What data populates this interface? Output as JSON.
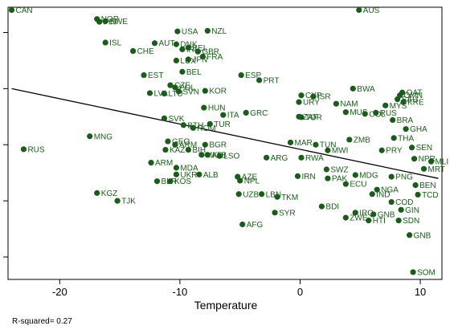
{
  "chart_data": {
    "type": "scatter",
    "title": "",
    "xlabel": "Temperature",
    "ylabel": "",
    "xlim": [
      -24.3,
      11.8
    ],
    "ylim": [
      -2.4,
      2.45
    ],
    "xticks": [
      -20,
      -10,
      0,
      10
    ],
    "xtick_labels": [
      "-20",
      "-10",
      "0",
      "10"
    ],
    "yticks": [
      -2,
      -1,
      0,
      1,
      2
    ],
    "grid": false,
    "legend": "none",
    "marker_color": "#1a5c1a",
    "note": "R-squared= 0.27",
    "fit_line": {
      "x": [
        -24,
        11.5
      ],
      "y": [
        1.0,
        -0.6
      ]
    },
    "points": [
      {
        "label": "CAN",
        "x": -24.0,
        "y": 2.4
      },
      {
        "label": "NOR",
        "x": -16.9,
        "y": 2.24
      },
      {
        "label": "FIN",
        "x": -16.7,
        "y": 2.19
      },
      {
        "label": "SWE",
        "x": -16.2,
        "y": 2.2
      },
      {
        "label": "AUS",
        "x": 4.9,
        "y": 2.4
      },
      {
        "label": "ISL",
        "x": -16.2,
        "y": 1.82
      },
      {
        "label": "USA",
        "x": -10.2,
        "y": 2.02
      },
      {
        "label": "NZL",
        "x": -7.7,
        "y": 2.03
      },
      {
        "label": "AUT",
        "x": -12.1,
        "y": 1.81
      },
      {
        "label": "DNK",
        "x": -10.3,
        "y": 1.79
      },
      {
        "label": "CHE",
        "x": -13.9,
        "y": 1.67
      },
      {
        "label": "BEL_u",
        "x": -9.3,
        "y": 1.73
      },
      {
        "label": "IRL",
        "x": -9.8,
        "y": 1.7
      },
      {
        "label": "GBR",
        "x": -8.5,
        "y": 1.66
      },
      {
        "label": "FRA",
        "x": -8.1,
        "y": 1.57
      },
      {
        "label": "LUX",
        "x": -10.3,
        "y": 1.5
      },
      {
        "label": "JPN",
        "x": -9.3,
        "y": 1.52
      },
      {
        "label": "BEL",
        "x": -9.8,
        "y": 1.3
      },
      {
        "label": "EST",
        "x": -13.0,
        "y": 1.24
      },
      {
        "label": "ESP",
        "x": -4.9,
        "y": 1.24
      },
      {
        "label": "PRT",
        "x": -3.4,
        "y": 1.15
      },
      {
        "label": "CZE",
        "x": -10.8,
        "y": 1.06
      },
      {
        "label": "POL",
        "x": -10.4,
        "y": 1.02
      },
      {
        "label": "LVA",
        "x": -12.5,
        "y": 0.92
      },
      {
        "label": "LTU",
        "x": -11.3,
        "y": 0.91
      },
      {
        "label": "SVN",
        "x": -10.1,
        "y": 0.95
      },
      {
        "label": "KOR",
        "x": -7.9,
        "y": 0.96
      },
      {
        "label": "BWA",
        "x": 4.4,
        "y": 1.0
      },
      {
        "label": "QAT",
        "x": 8.5,
        "y": 0.93
      },
      {
        "label": "OMN",
        "x": 8.3,
        "y": 0.88
      },
      {
        "label": "CYP",
        "x": 0.1,
        "y": 0.88
      },
      {
        "label": "ISR",
        "x": 1.1,
        "y": 0.86
      },
      {
        "label": "URY",
        "x": -0.1,
        "y": 0.76
      },
      {
        "label": "NAM",
        "x": 3.0,
        "y": 0.73
      },
      {
        "label": "SAU",
        "x": 8.1,
        "y": 0.81
      },
      {
        "label": "KRE",
        "x": 8.6,
        "y": 0.76
      },
      {
        "label": "MYS",
        "x": 7.1,
        "y": 0.7
      },
      {
        "label": "HUN",
        "x": -8.0,
        "y": 0.66
      },
      {
        "label": "ITA",
        "x": -6.4,
        "y": 0.53
      },
      {
        "label": "GRC",
        "x": -4.5,
        "y": 0.57
      },
      {
        "label": "SVK",
        "x": -11.3,
        "y": 0.47
      },
      {
        "label": "ZAF",
        "x": -0.1,
        "y": 0.5
      },
      {
        "label": "TOR",
        "x": 0.1,
        "y": 0.49
      },
      {
        "label": "MUS",
        "x": 3.8,
        "y": 0.58
      },
      {
        "label": "COL",
        "x": 5.4,
        "y": 0.55
      },
      {
        "label": "RUS_u",
        "x": 6.3,
        "y": 0.57
      },
      {
        "label": "BRA",
        "x": 7.7,
        "y": 0.44
      },
      {
        "label": "GHA",
        "x": 8.8,
        "y": 0.28
      },
      {
        "label": "BTH",
        "x": -9.7,
        "y": 0.35
      },
      {
        "label": "TUR",
        "x": -7.5,
        "y": 0.37
      },
      {
        "label": "ROM",
        "x": -8.9,
        "y": 0.3
      },
      {
        "label": "THA",
        "x": 7.8,
        "y": 0.12
      },
      {
        "label": "MNG",
        "x": -17.5,
        "y": 0.15
      },
      {
        "label": "RUS",
        "x": -23.0,
        "y": -0.08
      },
      {
        "label": "GEO",
        "x": -11.0,
        "y": 0.06
      },
      {
        "label": "ARM_u",
        "x": -10.4,
        "y": 0.0
      },
      {
        "label": "BGR",
        "x": -7.9,
        "y": 0.0
      },
      {
        "label": "KAZ",
        "x": -11.2,
        "y": -0.09
      },
      {
        "label": "BIH",
        "x": -9.3,
        "y": -0.09
      },
      {
        "label": "MKD",
        "x": -8.2,
        "y": -0.18
      },
      {
        "label": "ALB_u",
        "x": -7.7,
        "y": -0.18
      },
      {
        "label": "LSO",
        "x": -6.7,
        "y": -0.2
      },
      {
        "label": "MAR",
        "x": -0.8,
        "y": 0.04
      },
      {
        "label": "TUN",
        "x": 1.3,
        "y": 0.0
      },
      {
        "label": "ZMB",
        "x": 4.1,
        "y": 0.09
      },
      {
        "label": "SEN",
        "x": 9.3,
        "y": -0.05
      },
      {
        "label": "ARG",
        "x": -2.8,
        "y": -0.23
      },
      {
        "label": "RWA",
        "x": 0.1,
        "y": -0.23
      },
      {
        "label": "MWI",
        "x": 2.3,
        "y": -0.1
      },
      {
        "label": "PRY",
        "x": 6.8,
        "y": -0.1
      },
      {
        "label": "NPR",
        "x": 9.5,
        "y": -0.25
      },
      {
        "label": "MLI",
        "x": 10.9,
        "y": -0.3
      },
      {
        "label": "MRT",
        "x": 10.3,
        "y": -0.43
      },
      {
        "label": "ARM",
        "x": -12.4,
        "y": -0.32
      },
      {
        "label": "MDA",
        "x": -10.3,
        "y": -0.41
      },
      {
        "label": "SWZ",
        "x": 2.2,
        "y": -0.44
      },
      {
        "label": "UKR",
        "x": -10.3,
        "y": -0.53
      },
      {
        "label": "ALB",
        "x": -8.4,
        "y": -0.53
      },
      {
        "label": "AZE",
        "x": -5.2,
        "y": -0.57
      },
      {
        "label": "NPL",
        "x": -5.0,
        "y": -0.64
      },
      {
        "label": "BLR",
        "x": -11.9,
        "y": -0.65
      },
      {
        "label": "KOS",
        "x": -10.8,
        "y": -0.65
      },
      {
        "label": "IRN",
        "x": -0.2,
        "y": -0.56
      },
      {
        "label": "PAK",
        "x": 2.3,
        "y": -0.6
      },
      {
        "label": "MDG",
        "x": 4.6,
        "y": -0.54
      },
      {
        "label": "PNG",
        "x": 7.6,
        "y": -0.57
      },
      {
        "label": "ECU",
        "x": 3.8,
        "y": -0.7
      },
      {
        "label": "BEN",
        "x": 9.6,
        "y": -0.72
      },
      {
        "label": "KGZ",
        "x": -16.9,
        "y": -0.86
      },
      {
        "label": "TJK",
        "x": -15.2,
        "y": -1.0
      },
      {
        "label": "UZB",
        "x": -5.1,
        "y": -0.88
      },
      {
        "label": "LBN",
        "x": -3.2,
        "y": -0.88
      },
      {
        "label": "TKM",
        "x": -1.9,
        "y": -0.93
      },
      {
        "label": "NGA",
        "x": 6.4,
        "y": -0.8
      },
      {
        "label": "TCD",
        "x": 9.8,
        "y": -0.89
      },
      {
        "label": "IND",
        "x": 6.0,
        "y": -0.88
      },
      {
        "label": "COD",
        "x": 7.6,
        "y": -1.02
      },
      {
        "label": "BDI",
        "x": 1.8,
        "y": -1.1
      },
      {
        "label": "SYR",
        "x": -2.1,
        "y": -1.21
      },
      {
        "label": "GIN",
        "x": 8.4,
        "y": -1.16
      },
      {
        "label": "IRQ",
        "x": 4.6,
        "y": -1.21
      },
      {
        "label": "GNB_u",
        "x": 6.1,
        "y": -1.24
      },
      {
        "label": "ZWE",
        "x": 3.8,
        "y": -1.3
      },
      {
        "label": "HTI",
        "x": 5.7,
        "y": -1.35
      },
      {
        "label": "SDN",
        "x": 8.2,
        "y": -1.35
      },
      {
        "label": "AFG",
        "x": -4.8,
        "y": -1.42
      },
      {
        "label": "GNB",
        "x": 9.1,
        "y": -1.61
      },
      {
        "label": "SOM",
        "x": 9.4,
        "y": -2.27
      }
    ]
  }
}
